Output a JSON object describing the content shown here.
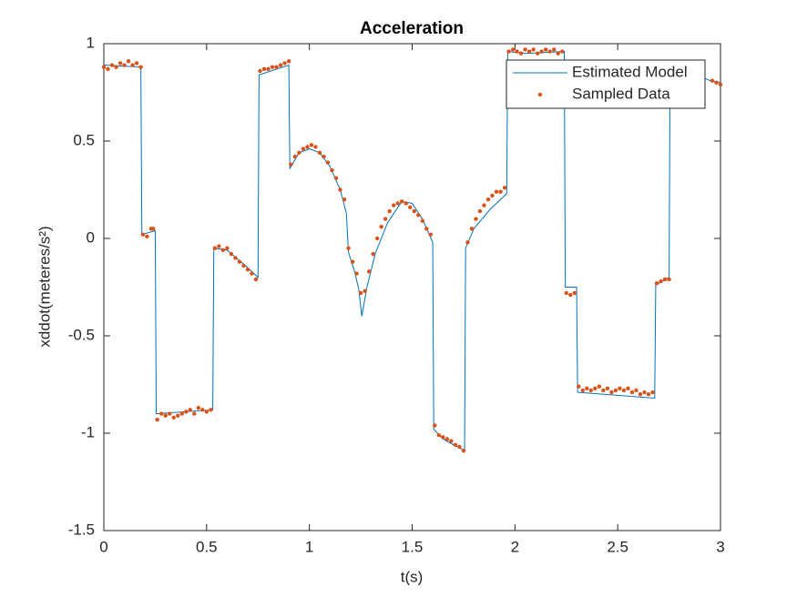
{
  "chart_data": {
    "type": "line",
    "title": "Acceleration",
    "xlabel": "t(s)",
    "ylabel": "xddot(meteres/s²)",
    "xlim": [
      0,
      3
    ],
    "ylim": [
      -1.5,
      1
    ],
    "xticks": [
      0,
      0.5,
      1,
      1.5,
      2,
      2.5,
      3
    ],
    "yticks": [
      -1.5,
      -1,
      -0.5,
      0,
      0.5,
      1
    ],
    "grid": false,
    "legend": "upper-right",
    "series": [
      {
        "name": "Estimated Model",
        "color": "#0072bd",
        "style": "line",
        "x": [
          0,
          0.18,
          0.185,
          0.25,
          0.255,
          0.53,
          0.535,
          0.6,
          0.7,
          0.75,
          0.755,
          0.9,
          0.905,
          0.95,
          1.0,
          1.05,
          1.1,
          1.15,
          1.18,
          1.19,
          1.22,
          1.24,
          1.255,
          1.28,
          1.32,
          1.38,
          1.45,
          1.5,
          1.55,
          1.6,
          1.605,
          1.65,
          1.755,
          1.76,
          1.8,
          1.88,
          1.96,
          1.965,
          2.05,
          2.24,
          2.245,
          2.3,
          2.305,
          2.68,
          2.685,
          2.75,
          2.755,
          2.8,
          2.95,
          3.0
        ],
        "values": [
          0.89,
          0.88,
          0.02,
          0.04,
          -0.9,
          -0.88,
          -0.05,
          -0.06,
          -0.15,
          -0.2,
          0.84,
          0.89,
          0.36,
          0.44,
          0.46,
          0.44,
          0.37,
          0.25,
          0.13,
          -0.07,
          -0.17,
          -0.26,
          -0.4,
          -0.25,
          -0.08,
          0.08,
          0.19,
          0.18,
          0.1,
          -0.02,
          -0.98,
          -1.03,
          -1.09,
          -0.05,
          0.05,
          0.15,
          0.23,
          0.96,
          0.95,
          0.96,
          -0.25,
          -0.25,
          -0.79,
          -0.82,
          -0.24,
          -0.2,
          0.91,
          0.88,
          0.81,
          0.8
        ]
      },
      {
        "name": "Sampled Data",
        "color": "#d95319",
        "style": "dots",
        "x": [
          0,
          0.02,
          0.04,
          0.06,
          0.08,
          0.1,
          0.12,
          0.14,
          0.16,
          0.18,
          0.19,
          0.21,
          0.23,
          0.24,
          0.26,
          0.28,
          0.3,
          0.32,
          0.34,
          0.36,
          0.38,
          0.4,
          0.42,
          0.44,
          0.46,
          0.48,
          0.5,
          0.52,
          0.54,
          0.56,
          0.58,
          0.6,
          0.62,
          0.64,
          0.66,
          0.68,
          0.7,
          0.72,
          0.74,
          0.76,
          0.78,
          0.8,
          0.82,
          0.84,
          0.86,
          0.88,
          0.9,
          0.91,
          0.93,
          0.95,
          0.97,
          0.99,
          1.01,
          1.03,
          1.05,
          1.07,
          1.09,
          1.11,
          1.13,
          1.15,
          1.17,
          1.19,
          1.21,
          1.23,
          1.25,
          1.27,
          1.29,
          1.31,
          1.33,
          1.35,
          1.37,
          1.39,
          1.41,
          1.43,
          1.45,
          1.47,
          1.49,
          1.51,
          1.53,
          1.55,
          1.57,
          1.59,
          1.61,
          1.63,
          1.65,
          1.67,
          1.69,
          1.71,
          1.73,
          1.75,
          1.77,
          1.79,
          1.81,
          1.83,
          1.85,
          1.87,
          1.89,
          1.91,
          1.93,
          1.95,
          1.97,
          1.99,
          2.01,
          2.03,
          2.05,
          2.07,
          2.09,
          2.11,
          2.13,
          2.15,
          2.17,
          2.19,
          2.21,
          2.23,
          2.25,
          2.27,
          2.29,
          2.31,
          2.33,
          2.35,
          2.37,
          2.39,
          2.41,
          2.43,
          2.45,
          2.47,
          2.49,
          2.51,
          2.53,
          2.55,
          2.57,
          2.59,
          2.61,
          2.63,
          2.65,
          2.67,
          2.69,
          2.71,
          2.73,
          2.75,
          2.96,
          2.98,
          3
        ],
        "values": [
          0.88,
          0.87,
          0.89,
          0.88,
          0.9,
          0.89,
          0.91,
          0.89,
          0.9,
          0.88,
          0.02,
          0.01,
          0.05,
          0.05,
          -0.93,
          -0.9,
          -0.91,
          -0.9,
          -0.92,
          -0.91,
          -0.9,
          -0.89,
          -0.88,
          -0.9,
          -0.87,
          -0.88,
          -0.89,
          -0.88,
          -0.05,
          -0.04,
          -0.06,
          -0.05,
          -0.08,
          -0.1,
          -0.12,
          -0.14,
          -0.16,
          -0.18,
          -0.21,
          0.86,
          0.87,
          0.87,
          0.88,
          0.88,
          0.89,
          0.9,
          0.91,
          0.38,
          0.42,
          0.44,
          0.46,
          0.47,
          0.48,
          0.47,
          0.44,
          0.42,
          0.39,
          0.35,
          0.31,
          0.25,
          0.2,
          -0.05,
          -0.12,
          -0.18,
          -0.28,
          -0.27,
          -0.17,
          -0.08,
          0.0,
          0.06,
          0.1,
          0.14,
          0.17,
          0.18,
          0.19,
          0.18,
          0.16,
          0.14,
          0.12,
          0.09,
          0.05,
          0.02,
          -0.96,
          -1.01,
          -1.02,
          -1.03,
          -1.04,
          -1.06,
          -1.07,
          -1.09,
          -0.02,
          0.05,
          0.1,
          0.14,
          0.17,
          0.2,
          0.22,
          0.24,
          0.24,
          0.26,
          0.96,
          0.97,
          0.96,
          0.95,
          0.97,
          0.96,
          0.97,
          0.95,
          0.96,
          0.97,
          0.96,
          0.97,
          0.95,
          0.96,
          -0.28,
          -0.29,
          -0.28,
          -0.76,
          -0.78,
          -0.77,
          -0.78,
          -0.77,
          -0.76,
          -0.78,
          -0.77,
          -0.79,
          -0.78,
          -0.77,
          -0.78,
          -0.77,
          -0.79,
          -0.78,
          -0.8,
          -0.79,
          -0.8,
          -0.79,
          -0.23,
          -0.22,
          -0.21,
          -0.21,
          0.81,
          0.8,
          0.79
        ]
      }
    ]
  }
}
